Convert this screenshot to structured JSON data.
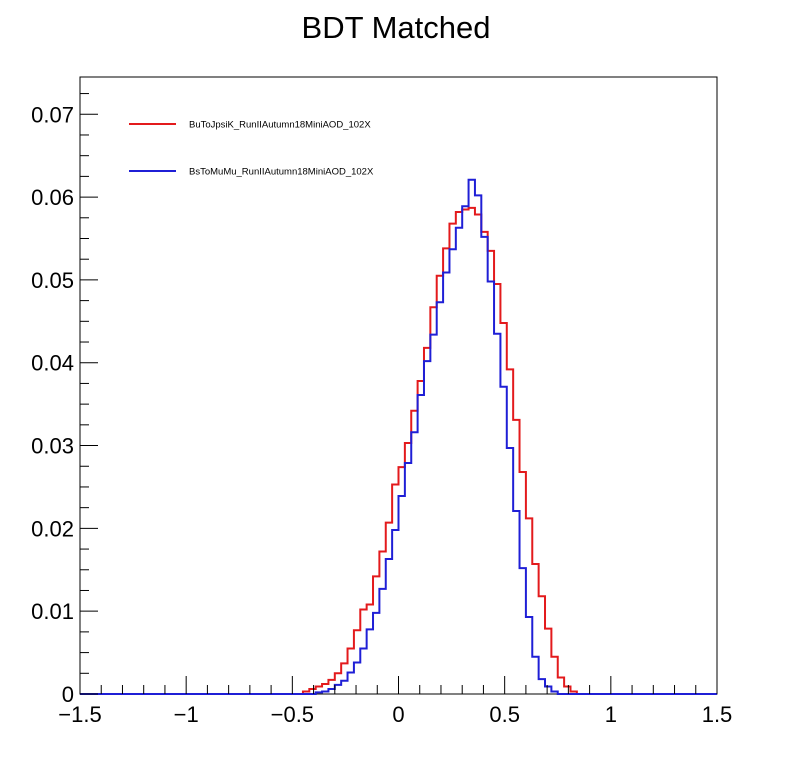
{
  "chart_data": {
    "type": "histogram",
    "title": "BDT Matched",
    "xlabel": "",
    "ylabel": "",
    "xlim": [
      -1.5,
      1.5
    ],
    "ylim": [
      0,
      0.0745
    ],
    "grid": false,
    "legend_position": "top-left",
    "x_ticks": [
      {
        "value": -1.5,
        "label": "−1.5"
      },
      {
        "value": -1.0,
        "label": "−1"
      },
      {
        "value": -0.5,
        "label": "−0.5"
      },
      {
        "value": 0.0,
        "label": "0"
      },
      {
        "value": 0.5,
        "label": "0.5"
      },
      {
        "value": 1.0,
        "label": "1"
      },
      {
        "value": 1.5,
        "label": "1.5"
      }
    ],
    "y_ticks": [
      {
        "value": 0,
        "label": "0"
      },
      {
        "value": 0.01,
        "label": "0.01"
      },
      {
        "value": 0.02,
        "label": "0.02"
      },
      {
        "value": 0.03,
        "label": "0.03"
      },
      {
        "value": 0.04,
        "label": "0.04"
      },
      {
        "value": 0.05,
        "label": "0.05"
      },
      {
        "value": 0.06,
        "label": "0.06"
      },
      {
        "value": 0.07,
        "label": "0.07"
      }
    ],
    "bin_width": 0.03,
    "series": [
      {
        "name": "BuToJpsiK_RunIIAutumn18MiniAOD_102X",
        "color": "#e31a1c",
        "bins": [
          [
            -0.45,
            0.0003
          ],
          [
            -0.42,
            0.0006
          ],
          [
            -0.39,
            0.0009
          ],
          [
            -0.36,
            0.0012
          ],
          [
            -0.33,
            0.0017
          ],
          [
            -0.3,
            0.0025
          ],
          [
            -0.27,
            0.0037
          ],
          [
            -0.24,
            0.0055
          ],
          [
            -0.21,
            0.0077
          ],
          [
            -0.18,
            0.0102
          ],
          [
            -0.15,
            0.0108
          ],
          [
            -0.12,
            0.0142
          ],
          [
            -0.09,
            0.0172
          ],
          [
            -0.06,
            0.0207
          ],
          [
            -0.03,
            0.0253
          ],
          [
            0.0,
            0.0274
          ],
          [
            0.03,
            0.0303
          ],
          [
            0.06,
            0.0342
          ],
          [
            0.09,
            0.0378
          ],
          [
            0.12,
            0.0418
          ],
          [
            0.15,
            0.0467
          ],
          [
            0.18,
            0.0505
          ],
          [
            0.21,
            0.0538
          ],
          [
            0.24,
            0.0568
          ],
          [
            0.27,
            0.0582
          ],
          [
            0.3,
            0.0585
          ],
          [
            0.33,
            0.0587
          ],
          [
            0.36,
            0.0579
          ],
          [
            0.39,
            0.0558
          ],
          [
            0.42,
            0.0535
          ],
          [
            0.45,
            0.0495
          ],
          [
            0.48,
            0.0448
          ],
          [
            0.51,
            0.0392
          ],
          [
            0.54,
            0.0331
          ],
          [
            0.57,
            0.0268
          ],
          [
            0.6,
            0.0212
          ],
          [
            0.63,
            0.0157
          ],
          [
            0.66,
            0.0118
          ],
          [
            0.69,
            0.0079
          ],
          [
            0.72,
            0.0045
          ],
          [
            0.75,
            0.002
          ],
          [
            0.78,
            0.0009
          ],
          [
            0.81,
            0.0003
          ]
        ]
      },
      {
        "name": "BsToMuMu_RunIIAutumn18MiniAOD_102X",
        "color": "#1f1fd6",
        "bins": [
          [
            -0.39,
            0.0002
          ],
          [
            -0.36,
            0.0003
          ],
          [
            -0.33,
            0.0006
          ],
          [
            -0.3,
            0.0011
          ],
          [
            -0.27,
            0.0016
          ],
          [
            -0.24,
            0.0026
          ],
          [
            -0.21,
            0.0038
          ],
          [
            -0.18,
            0.0055
          ],
          [
            -0.15,
            0.0078
          ],
          [
            -0.12,
            0.0098
          ],
          [
            -0.09,
            0.0127
          ],
          [
            -0.06,
            0.0163
          ],
          [
            -0.03,
            0.0198
          ],
          [
            0.0,
            0.0239
          ],
          [
            0.03,
            0.0279
          ],
          [
            0.06,
            0.0316
          ],
          [
            0.09,
            0.0361
          ],
          [
            0.12,
            0.0402
          ],
          [
            0.15,
            0.0434
          ],
          [
            0.18,
            0.0473
          ],
          [
            0.21,
            0.0509
          ],
          [
            0.24,
            0.0537
          ],
          [
            0.27,
            0.0563
          ],
          [
            0.3,
            0.0589
          ],
          [
            0.33,
            0.0621
          ],
          [
            0.36,
            0.0602
          ],
          [
            0.39,
            0.0552
          ],
          [
            0.42,
            0.0498
          ],
          [
            0.45,
            0.0435
          ],
          [
            0.48,
            0.0371
          ],
          [
            0.51,
            0.0297
          ],
          [
            0.54,
            0.0221
          ],
          [
            0.57,
            0.0152
          ],
          [
            0.6,
            0.0093
          ],
          [
            0.63,
            0.0045
          ],
          [
            0.66,
            0.0018
          ],
          [
            0.69,
            0.0009
          ],
          [
            0.72,
            0.0003
          ]
        ]
      }
    ]
  }
}
